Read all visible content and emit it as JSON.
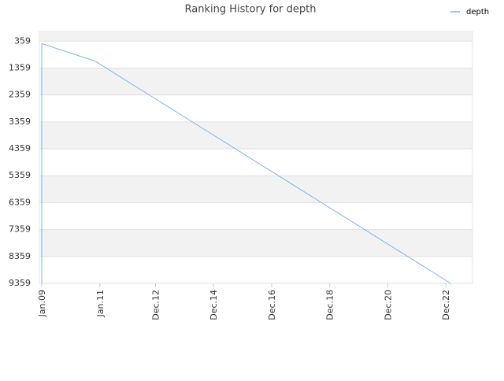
{
  "chart_data": {
    "type": "line",
    "title": "Ranking History for depth",
    "x": [
      "2009-01",
      "2009-01",
      "2010-11",
      "2023-02"
    ],
    "series": [
      {
        "name": "depth",
        "color": "#7cb5ec",
        "values": [
          9359,
          450,
          1100,
          9359
        ]
      }
    ],
    "xlim": [
      "2008-12",
      "2023-11"
    ],
    "xticks": [
      {
        "value": "2009-01",
        "label": "Jan.09"
      },
      {
        "value": "2011-01",
        "label": "Jan.11"
      },
      {
        "value": "2012-12",
        "label": "Dec.12"
      },
      {
        "value": "2014-12",
        "label": "Dec.14"
      },
      {
        "value": "2016-12",
        "label": "Dec.16"
      },
      {
        "value": "2018-12",
        "label": "Dec.18"
      },
      {
        "value": "2020-12",
        "label": "Dec.20"
      },
      {
        "value": "2022-12",
        "label": "Dec.22"
      }
    ],
    "ylim": [
      9359,
      0
    ],
    "yticks": [
      359,
      1359,
      2359,
      3359,
      4359,
      5359,
      6359,
      7359,
      8359,
      9359
    ],
    "grid": true,
    "legend": "top-right"
  }
}
